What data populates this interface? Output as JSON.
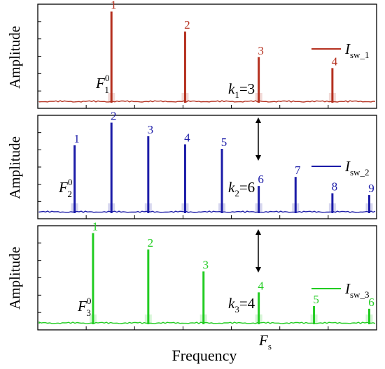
{
  "chart_data": [
    {
      "type": "line",
      "ylabel": "Amplitude",
      "color": "#b5301f",
      "legend": {
        "symbol": "I",
        "sub": "sw_1",
        "placement": "top-right"
      },
      "fund_label": {
        "base": "F",
        "sup": "0",
        "sub": "1"
      },
      "k_label": {
        "base": "k",
        "sub": "1",
        "rest": "=3"
      },
      "peaks": [
        {
          "label": "1",
          "x": 3,
          "y": 1.0
        },
        {
          "label": "2",
          "x": 6,
          "y": 0.78
        },
        {
          "label": "3",
          "x": 9,
          "y": 0.5
        },
        {
          "label": "4",
          "x": 12,
          "y": 0.38
        }
      ]
    },
    {
      "type": "line",
      "ylabel": "Amplitude",
      "color": "#1c1ca8",
      "legend": {
        "symbol": "I",
        "sub": "sw_2",
        "placement": "middle-right"
      },
      "fund_label": {
        "base": "F",
        "sup": "0",
        "sub": "2"
      },
      "k_label": {
        "base": "k",
        "sub": "2",
        "rest": "=6"
      },
      "peaks": [
        {
          "label": "1",
          "x": 1.5,
          "y": 0.75
        },
        {
          "label": "2",
          "x": 3,
          "y": 1.0
        },
        {
          "label": "3",
          "x": 4.5,
          "y": 0.85
        },
        {
          "label": "4",
          "x": 6,
          "y": 0.76
        },
        {
          "label": "5",
          "x": 7.5,
          "y": 0.71
        },
        {
          "label": "6",
          "x": 9,
          "y": 0.3
        },
        {
          "label": "7",
          "x": 10.5,
          "y": 0.4
        },
        {
          "label": "8",
          "x": 12,
          "y": 0.22
        },
        {
          "label": "9",
          "x": 13.5,
          "y": 0.2
        }
      ]
    },
    {
      "type": "line",
      "ylabel": "Amplitude",
      "color": "#22cc22",
      "legend": {
        "symbol": "I",
        "sub": "sw_3",
        "placement": "bottom-right"
      },
      "fund_label": {
        "base": "F",
        "sup": "0",
        "sub": "3"
      },
      "k_label": {
        "base": "k",
        "sub": "3",
        "rest": "=4"
      },
      "peaks": [
        {
          "label": "1",
          "x": 2.25,
          "y": 1.0
        },
        {
          "label": "2",
          "x": 4.5,
          "y": 0.82
        },
        {
          "label": "3",
          "x": 6.75,
          "y": 0.58
        },
        {
          "label": "4",
          "x": 9,
          "y": 0.35
        },
        {
          "label": "5",
          "x": 11.25,
          "y": 0.2
        },
        {
          "label": "6",
          "x": 13.5,
          "y": 0.17
        }
      ]
    }
  ],
  "xlabel": "Frequency",
  "fs_label": {
    "base": "F",
    "sub": "s"
  },
  "xlim": [
    0,
    13.8
  ],
  "ylim": [
    0,
    1.05
  ]
}
